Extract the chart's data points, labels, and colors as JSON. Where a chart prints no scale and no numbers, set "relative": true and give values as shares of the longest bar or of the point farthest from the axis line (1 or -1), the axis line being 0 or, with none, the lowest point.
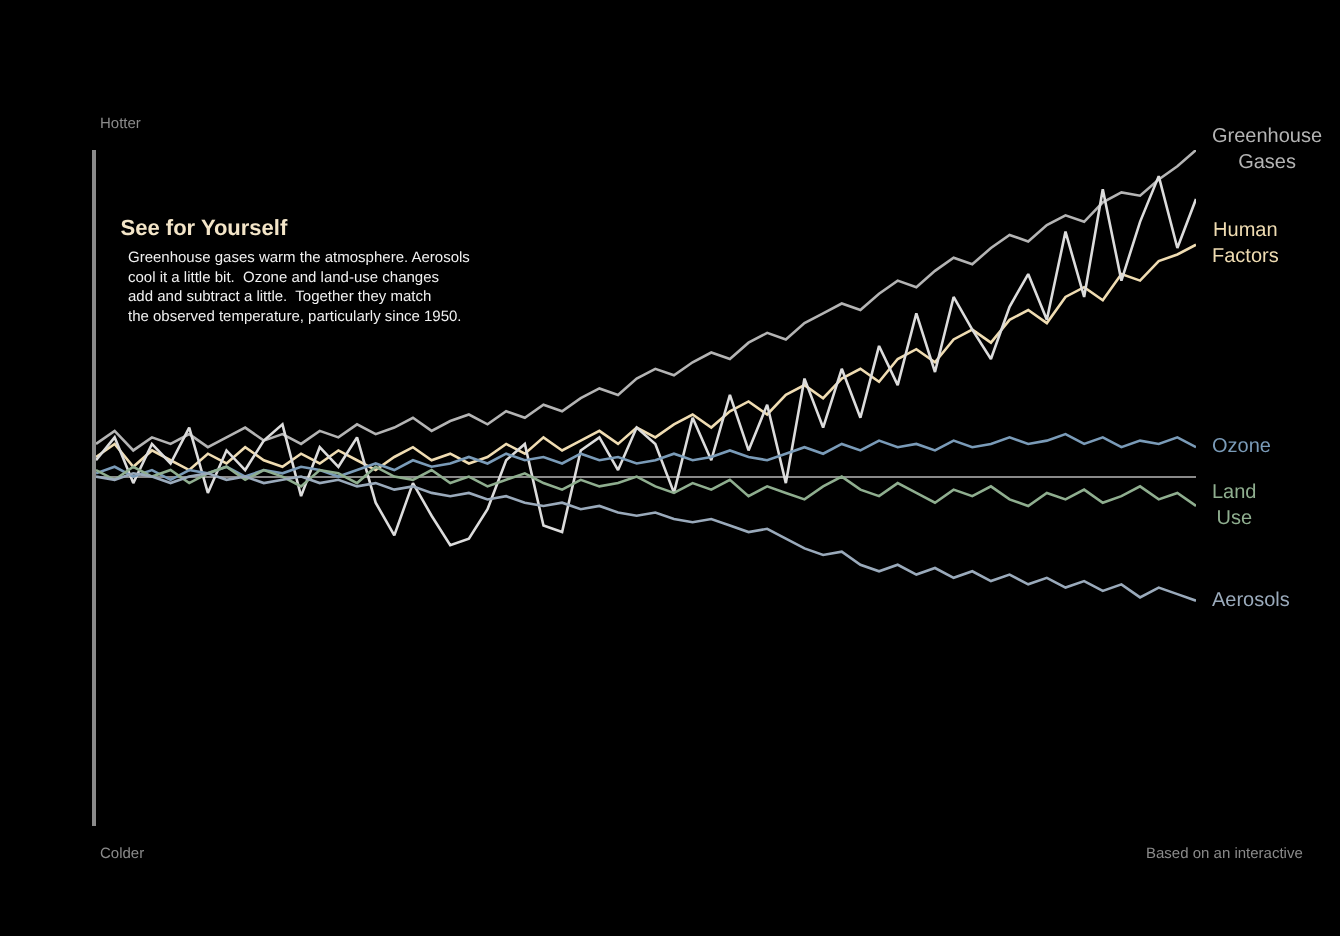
{
  "chart_data": {
    "type": "line",
    "title": "See for Yourself",
    "subtitle": "Greenhouse gases warm the atmosphere. Aerosols cool it a little bit.  Ozone and land-use changes add and subtract a little.  Together they match the observed temperature, particularly since 1950.",
    "relative": true,
    "legend": false,
    "grid": false,
    "categories": [
      null,
      null,
      null,
      null,
      null,
      null,
      null,
      null,
      null,
      null,
      null,
      null,
      null,
      null,
      null,
      null,
      null,
      null,
      null,
      null,
      null,
      null,
      null,
      null,
      null,
      null,
      null,
      null,
      null,
      null,
      null,
      null,
      null,
      null,
      null,
      null,
      null,
      null,
      null,
      null,
      null,
      null,
      null,
      null,
      null,
      null,
      null,
      null,
      null,
      null,
      null,
      null,
      null,
      null,
      null,
      null,
      null,
      null,
      null,
      null
    ],
    "annotations": [
      "Hotter",
      "Colder",
      "Based on an interactive"
    ],
    "series": [
      {
        "name": "Greenhouse Gases",
        "color": "#b4b4b4",
        "values": [
          0.1,
          0.14,
          0.08,
          0.12,
          0.1,
          0.13,
          0.09,
          0.12,
          0.15,
          0.11,
          0.13,
          0.1,
          0.14,
          0.12,
          0.16,
          0.13,
          0.15,
          0.18,
          0.14,
          0.17,
          0.19,
          0.16,
          0.2,
          0.18,
          0.22,
          0.2,
          0.24,
          0.27,
          0.25,
          0.3,
          0.33,
          0.31,
          0.35,
          0.38,
          0.36,
          0.41,
          0.44,
          0.42,
          0.47,
          0.5,
          0.53,
          0.51,
          0.56,
          0.6,
          0.58,
          0.63,
          0.67,
          0.65,
          0.7,
          0.74,
          0.72,
          0.77,
          0.8,
          0.78,
          0.84,
          0.87,
          0.86,
          0.91,
          0.95,
          1.0
        ]
      },
      {
        "name": "Human Factors",
        "color": "#efdcb2",
        "values": [
          0.06,
          0.1,
          0.03,
          0.08,
          0.05,
          0.02,
          0.07,
          0.04,
          0.09,
          0.05,
          0.03,
          0.07,
          0.04,
          0.08,
          0.05,
          0.02,
          0.06,
          0.09,
          0.05,
          0.07,
          0.04,
          0.06,
          0.1,
          0.07,
          0.12,
          0.08,
          0.11,
          0.14,
          0.1,
          0.15,
          0.12,
          0.16,
          0.19,
          0.15,
          0.2,
          0.23,
          0.19,
          0.25,
          0.28,
          0.24,
          0.3,
          0.33,
          0.29,
          0.36,
          0.39,
          0.35,
          0.42,
          0.45,
          0.41,
          0.48,
          0.51,
          0.47,
          0.55,
          0.58,
          0.54,
          0.62,
          0.6,
          0.66,
          0.68,
          0.71
        ]
      },
      {
        "color": "#dcdcdc",
        "values": [
          0.05,
          0.12,
          -0.02,
          0.1,
          0.04,
          0.15,
          -0.05,
          0.08,
          0.02,
          0.11,
          0.16,
          -0.06,
          0.09,
          0.03,
          0.12,
          -0.08,
          -0.18,
          -0.02,
          -0.12,
          -0.21,
          -0.19,
          -0.1,
          0.05,
          0.1,
          -0.15,
          -0.17,
          0.08,
          0.12,
          0.02,
          0.15,
          0.1,
          -0.05,
          0.18,
          0.05,
          0.25,
          0.08,
          0.22,
          -0.02,
          0.3,
          0.15,
          0.33,
          0.18,
          0.4,
          0.28,
          0.5,
          0.32,
          0.55,
          0.45,
          0.36,
          0.52,
          0.62,
          0.48,
          0.75,
          0.55,
          0.88,
          0.6,
          0.78,
          0.92,
          0.7,
          0.85
        ]
      },
      {
        "name": "Ozone",
        "color": "#7a9bb8",
        "values": [
          0.01,
          0.03,
          0.0,
          0.02,
          -0.01,
          0.02,
          0.01,
          0.03,
          0.0,
          0.02,
          0.01,
          0.03,
          0.02,
          0.0,
          0.02,
          0.04,
          0.02,
          0.05,
          0.03,
          0.04,
          0.06,
          0.04,
          0.07,
          0.05,
          0.06,
          0.04,
          0.07,
          0.05,
          0.06,
          0.04,
          0.05,
          0.07,
          0.05,
          0.06,
          0.08,
          0.06,
          0.05,
          0.07,
          0.09,
          0.07,
          0.1,
          0.08,
          0.11,
          0.09,
          0.1,
          0.08,
          0.11,
          0.09,
          0.1,
          0.12,
          0.1,
          0.11,
          0.13,
          0.1,
          0.12,
          0.09,
          0.11,
          0.1,
          0.12,
          0.09
        ]
      },
      {
        "name": "Land Use",
        "color": "#8fae8f",
        "values": [
          0.02,
          -0.01,
          0.03,
          0.0,
          0.02,
          -0.02,
          0.01,
          0.03,
          -0.01,
          0.02,
          0.0,
          -0.03,
          0.02,
          0.01,
          -0.02,
          0.03,
          0.0,
          -0.01,
          0.02,
          -0.02,
          0.0,
          -0.03,
          -0.01,
          0.01,
          -0.02,
          -0.04,
          -0.01,
          -0.03,
          -0.02,
          0.0,
          -0.03,
          -0.05,
          -0.02,
          -0.04,
          -0.01,
          -0.06,
          -0.03,
          -0.05,
          -0.07,
          -0.03,
          0.0,
          -0.04,
          -0.06,
          -0.02,
          -0.05,
          -0.08,
          -0.04,
          -0.06,
          -0.03,
          -0.07,
          -0.09,
          -0.05,
          -0.07,
          -0.04,
          -0.08,
          -0.06,
          -0.03,
          -0.07,
          -0.05,
          -0.09
        ]
      },
      {
        "name": "Aerosols",
        "color": "#9aaabb",
        "values": [
          0.0,
          -0.01,
          0.01,
          0.0,
          -0.02,
          0.0,
          0.01,
          -0.01,
          0.0,
          -0.02,
          -0.01,
          0.0,
          -0.02,
          -0.01,
          -0.03,
          -0.02,
          -0.04,
          -0.03,
          -0.05,
          -0.06,
          -0.05,
          -0.07,
          -0.06,
          -0.08,
          -0.09,
          -0.08,
          -0.1,
          -0.09,
          -0.11,
          -0.12,
          -0.11,
          -0.13,
          -0.14,
          -0.13,
          -0.15,
          -0.17,
          -0.16,
          -0.19,
          -0.22,
          -0.24,
          -0.23,
          -0.27,
          -0.29,
          -0.27,
          -0.3,
          -0.28,
          -0.31,
          -0.29,
          -0.32,
          -0.3,
          -0.33,
          -0.31,
          -0.34,
          -0.32,
          -0.35,
          -0.33,
          -0.37,
          -0.34,
          -0.36,
          -0.38
        ]
      }
    ]
  }
}
